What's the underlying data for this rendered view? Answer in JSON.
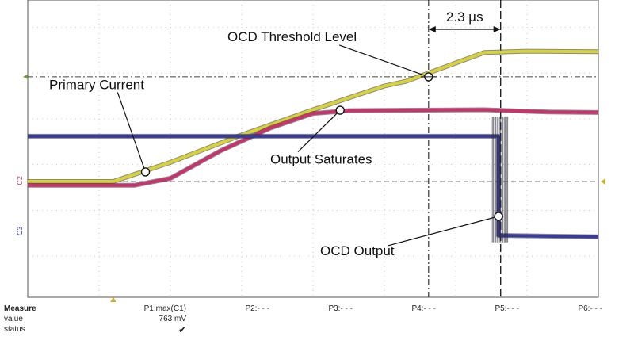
{
  "chart_data": {
    "type": "line",
    "title": "",
    "xlabel": "",
    "ylabel": "",
    "grid": true,
    "series": [
      {
        "color": "#d8d23a",
        "points": [
          [
            0,
            0.63
          ],
          [
            1.2,
            0.63
          ],
          [
            2.0,
            1.05
          ],
          [
            3.0,
            1.65
          ],
          [
            4.0,
            2.2
          ],
          [
            5.0,
            2.72
          ],
          [
            5.3,
            2.82
          ],
          [
            6.4,
            3.45
          ],
          [
            7.0,
            3.48
          ],
          [
            8.0,
            3.47
          ]
        ]
      },
      {
        "color": "#c8326e",
        "points": [
          [
            0,
            0.55
          ],
          [
            1.5,
            0.55
          ],
          [
            2.0,
            0.7
          ],
          [
            2.7,
            1.3
          ],
          [
            3.4,
            1.8
          ],
          [
            4.0,
            2.12
          ],
          [
            4.5,
            2.18
          ],
          [
            6.4,
            2.2
          ],
          [
            7.3,
            2.15
          ],
          [
            8.0,
            2.14
          ]
        ]
      },
      {
        "color": "#3a3a9a",
        "points": [
          [
            0,
            1.62
          ],
          [
            6.6,
            1.62
          ],
          [
            6.6,
            -0.55
          ],
          [
            8.0,
            -0.58
          ]
        ]
      }
    ],
    "annotations": [
      {
        "text": "Primary Current",
        "point": [
          1.65,
          0.84
        ],
        "label_at": [
          0.3,
          2.65
        ]
      },
      {
        "text": "OCD Threshold Level",
        "point": [
          5.62,
          2.92
        ],
        "label_at": [
          2.8,
          3.7
        ]
      },
      {
        "text": "Output Saturates",
        "point": [
          4.38,
          2.19
        ],
        "label_at": [
          3.4,
          1.02
        ]
      },
      {
        "text": "OCD Output",
        "point": [
          6.6,
          -0.13
        ],
        "label_at": [
          4.1,
          -0.98
        ]
      }
    ],
    "threshold_level": 2.92,
    "cursors": {
      "t1": 5.62,
      "t2": 6.63,
      "delta_label": "2.3 µs"
    }
  },
  "channel_markers": {
    "c2": "C2",
    "c3": "C3"
  },
  "measure": {
    "header": "Measure",
    "row_labels": [
      "value",
      "status"
    ],
    "params": [
      {
        "name": "P1:max(C1)",
        "value": "763 mV",
        "status": "✔"
      },
      {
        "name": "P2:- - -"
      },
      {
        "name": "P3:- - -"
      },
      {
        "name": "P4:- - -"
      },
      {
        "name": "P5:- - -"
      },
      {
        "name": "P6:- - -"
      }
    ]
  }
}
